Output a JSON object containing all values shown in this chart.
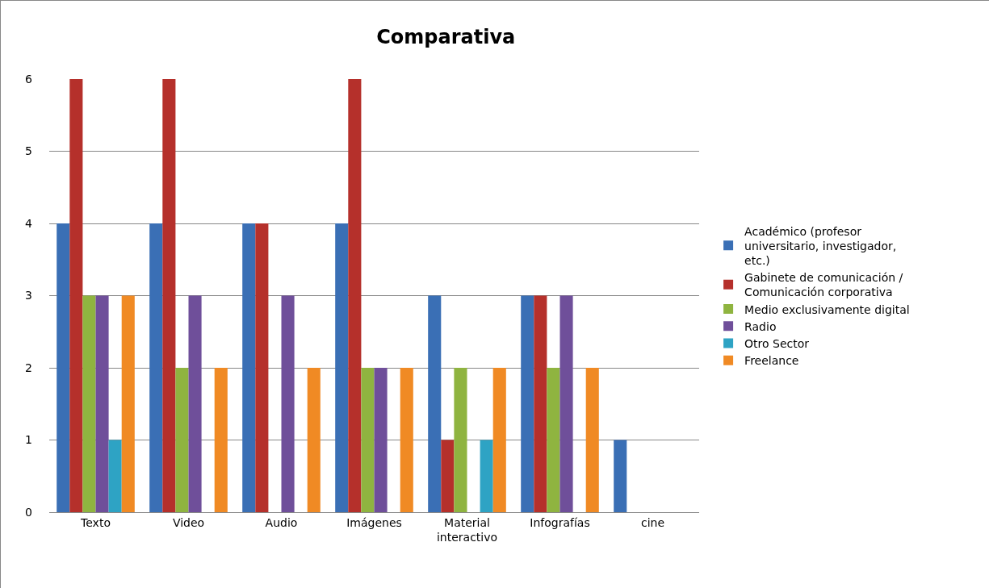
{
  "chart_data": {
    "type": "bar",
    "title": "Comparativa",
    "categories": [
      "Texto",
      "Video",
      "Audio",
      "Imágenes",
      "Material interactivo",
      "Infografías",
      "cine"
    ],
    "series": [
      {
        "name": "Académico (profesor universitario, investigador, etc.)",
        "color": "#3a6fb5",
        "values": [
          4,
          4,
          4,
          4,
          3,
          3,
          1
        ]
      },
      {
        "name": "Gabinete de comunicación / Comunicación corporativa",
        "color": "#b5302b",
        "values": [
          6,
          6,
          4,
          6,
          1,
          3,
          0
        ]
      },
      {
        "name": "Medio exclusivamente digital",
        "color": "#8fb440",
        "values": [
          3,
          2,
          0,
          2,
          2,
          2,
          0
        ]
      },
      {
        "name": "Radio",
        "color": "#6f4f9a",
        "values": [
          3,
          3,
          3,
          2,
          0,
          3,
          0
        ]
      },
      {
        "name": "Otro Sector",
        "color": "#2ea3c4",
        "values": [
          1,
          0,
          0,
          0,
          1,
          0,
          0
        ]
      },
      {
        "name": "Freelance",
        "color": "#f08a24",
        "values": [
          3,
          2,
          2,
          2,
          2,
          2,
          0
        ]
      }
    ],
    "ylim": [
      0,
      6
    ],
    "yticks": [
      0,
      1,
      2,
      3,
      4,
      5,
      6
    ],
    "grid": "y",
    "legend": "right"
  }
}
